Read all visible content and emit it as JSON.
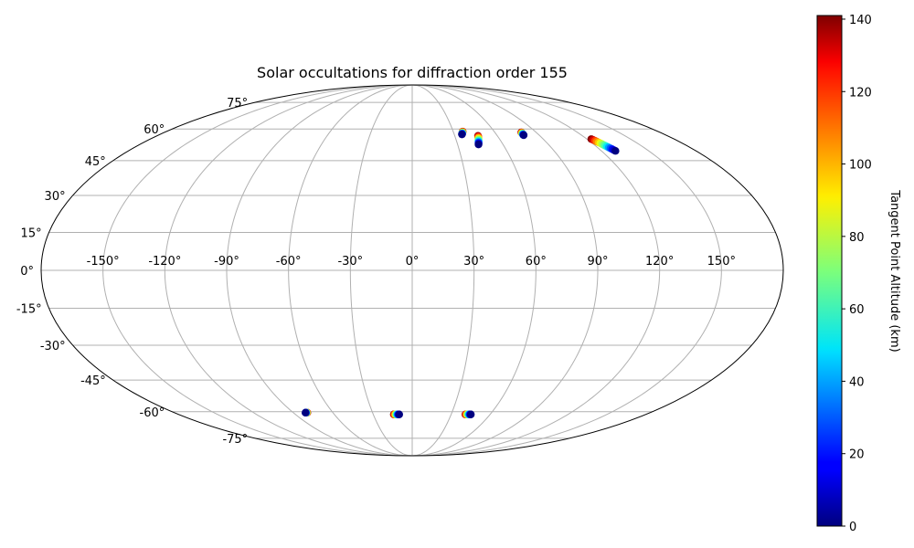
{
  "chart_data": {
    "type": "scatter",
    "projection": "mollweide",
    "title": "Solar occultations for diffraction order 155",
    "x_ticks": [
      -150,
      -120,
      -90,
      -60,
      -30,
      0,
      30,
      60,
      90,
      120,
      150
    ],
    "x_tick_labels": [
      "-150°",
      "-120°",
      "-90°",
      "-60°",
      "-30°",
      "0°",
      "30°",
      "60°",
      "90°",
      "120°",
      "150°"
    ],
    "y_ticks": [
      75,
      60,
      45,
      30,
      15,
      0,
      -15,
      -30,
      -45,
      -60,
      -75
    ],
    "y_tick_labels": [
      "75°",
      "60°",
      "45°",
      "30°",
      "15°",
      "0°",
      "-15°",
      "-30°",
      "-45°",
      "-60°",
      "-75°"
    ],
    "grid": true,
    "colormap": "jet",
    "colorbar": {
      "label": "Tangent Point Altitude (km)",
      "min": 0,
      "max": 141,
      "ticks": [
        0,
        20,
        40,
        60,
        80,
        100,
        120,
        140
      ],
      "tick_labels": [
        "0",
        "20",
        "40",
        "60",
        "80",
        "100",
        "120",
        "140"
      ]
    },
    "series": [
      {
        "lon": [
          36.9,
          36.8,
          36.7,
          36.6,
          36.5,
          36.4,
          36.3,
          36.2,
          36.1,
          36.0,
          35.9,
          35.8,
          35.7,
          35.6,
          35.5
        ],
        "lat": [
          58.7,
          58.6,
          58.5,
          58.4,
          58.3,
          58.2,
          58.1,
          58.0,
          57.9,
          57.8,
          57.7,
          57.6,
          57.5,
          57.4,
          57.3
        ],
        "alt": [
          140,
          130,
          120,
          110,
          100,
          90,
          80,
          70,
          60,
          50,
          40,
          30,
          20,
          10,
          0
        ]
      },
      {
        "lon": [
          46.4,
          46.3,
          46.2,
          46.0,
          45.8,
          45.6,
          45.4,
          45.2,
          45.0,
          44.8,
          44.6,
          44.4,
          44.2,
          44.0,
          43.8
        ],
        "lat": [
          56.6,
          56.3,
          56.0,
          55.7,
          55.4,
          55.1,
          54.8,
          54.5,
          54.2,
          53.9,
          53.6,
          53.3,
          53.0,
          52.7,
          52.4
        ],
        "alt": [
          140,
          130,
          120,
          110,
          100,
          90,
          80,
          70,
          60,
          50,
          40,
          30,
          20,
          10,
          0
        ]
      },
      {
        "lon": [
          79.2,
          79.2,
          79.2,
          79.2,
          79.1,
          79.1,
          79.1,
          79.1,
          79.1,
          79.1,
          79.0,
          79.0,
          79.0,
          79.0,
          79.0
        ],
        "lat": [
          58.3,
          58.2,
          58.1,
          58.0,
          57.9,
          57.8,
          57.7,
          57.6,
          57.5,
          57.4,
          57.3,
          57.2,
          57.1,
          57.0,
          56.9
        ],
        "alt": [
          140,
          130,
          120,
          110,
          100,
          90,
          80,
          70,
          60,
          50,
          40,
          30,
          20,
          10,
          0
        ]
      },
      {
        "lon": [
          123.0,
          123.5,
          124.0,
          124.4,
          124.9,
          125.3,
          125.7,
          126.1,
          126.5,
          126.9,
          127.3,
          127.7,
          128.1,
          128.5,
          128.9
        ],
        "lat": [
          55.0,
          54.6,
          54.2,
          53.8,
          53.4,
          53.0,
          52.6,
          52.2,
          51.8,
          51.4,
          51.0,
          50.6,
          50.2,
          49.8,
          49.4
        ],
        "alt": [
          140,
          130,
          120,
          110,
          100,
          90,
          80,
          70,
          60,
          50,
          40,
          30,
          20,
          10,
          0
        ]
      },
      {
        "lon": [
          -79.4,
          -79.5,
          -79.6,
          -79.7,
          -79.8,
          -79.9,
          -80.0,
          -80.1,
          -80.2,
          -80.3,
          -80.4,
          -80.5,
          -80.6,
          -80.7,
          -80.8
        ],
        "lat": [
          -60.5,
          -60.5,
          -60.5,
          -60.5,
          -60.5,
          -60.5,
          -60.5,
          -60.5,
          -60.5,
          -60.5,
          -60.5,
          -60.5,
          -60.5,
          -60.5,
          -60.5
        ],
        "alt": [
          140,
          130,
          120,
          110,
          100,
          90,
          80,
          70,
          60,
          50,
          40,
          30,
          20,
          10,
          0
        ]
      },
      {
        "lon": [
          -14.2,
          -13.9,
          -13.6,
          -13.3,
          -13.0,
          -12.7,
          -12.4,
          -12.1,
          -11.8,
          -11.5,
          -11.2,
          -10.9,
          -10.6,
          -10.3,
          -10.0
        ],
        "lat": [
          -61.4,
          -61.4,
          -61.4,
          -61.4,
          -61.4,
          -61.4,
          -61.4,
          -61.4,
          -61.4,
          -61.4,
          -61.4,
          -61.4,
          -61.4,
          -61.4,
          -61.4
        ],
        "alt": [
          140,
          130,
          120,
          110,
          100,
          90,
          80,
          70,
          60,
          50,
          40,
          30,
          20,
          10,
          0
        ]
      },
      {
        "lon": [
          41.0,
          41.3,
          41.6,
          41.9,
          42.2,
          42.5,
          42.8,
          43.1,
          43.4,
          43.7,
          44.0,
          44.3,
          44.6,
          44.9,
          45.2
        ],
        "lat": [
          -61.4,
          -61.4,
          -61.4,
          -61.4,
          -61.4,
          -61.4,
          -61.4,
          -61.4,
          -61.4,
          -61.4,
          -61.4,
          -61.4,
          -61.4,
          -61.4,
          -61.4
        ],
        "alt": [
          140,
          130,
          120,
          110,
          100,
          90,
          80,
          70,
          60,
          50,
          40,
          30,
          20,
          10,
          0
        ]
      }
    ]
  }
}
